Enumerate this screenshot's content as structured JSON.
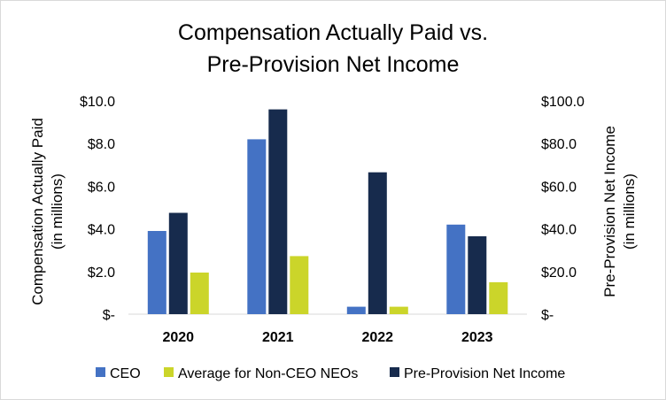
{
  "chart_data": {
    "type": "bar",
    "title_lines": [
      "Compensation Actually Paid vs.",
      "Pre-Provision Net Income"
    ],
    "categories": [
      "2020",
      "2021",
      "2022",
      "2023"
    ],
    "series": [
      {
        "name": "CEO",
        "axis": "left",
        "color": "#4472c4",
        "values": [
          3.9,
          8.2,
          0.35,
          4.2
        ]
      },
      {
        "name": "Pre-Provision Net Income",
        "axis": "right",
        "color": "#172b4d",
        "values": [
          47.5,
          96.0,
          66.5,
          36.5
        ]
      },
      {
        "name": "Average for Non-CEO NEOs",
        "axis": "left",
        "color": "#cbd52a",
        "values": [
          1.95,
          2.72,
          0.35,
          1.5
        ]
      }
    ],
    "y_left": {
      "label_lines": [
        "Compensation Actually Paid",
        "(in millions)"
      ],
      "ylim": [
        0,
        10
      ],
      "ticks": [
        0,
        2,
        4,
        6,
        8,
        10
      ],
      "tick_labels": [
        "$-",
        "$2.0",
        "$4.0",
        "$6.0",
        "$8.0",
        "$10.0"
      ]
    },
    "y_right": {
      "label_lines": [
        "Pre-Provision Net Income",
        "(in millions)"
      ],
      "ylim": [
        0,
        100
      ],
      "ticks": [
        0,
        20,
        40,
        60,
        80,
        100
      ],
      "tick_labels": [
        "$-",
        "$20.0",
        "$40.0",
        "$60.0",
        "$80.0",
        "$100.0"
      ]
    },
    "legend": {
      "position": "bottom",
      "entries": [
        {
          "label": "CEO",
          "color": "#4472c4"
        },
        {
          "label": "Average for Non-CEO NEOs",
          "color": "#cbd52a"
        },
        {
          "label": "Pre-Provision Net Income",
          "color": "#172b4d"
        }
      ]
    },
    "grid": false
  }
}
